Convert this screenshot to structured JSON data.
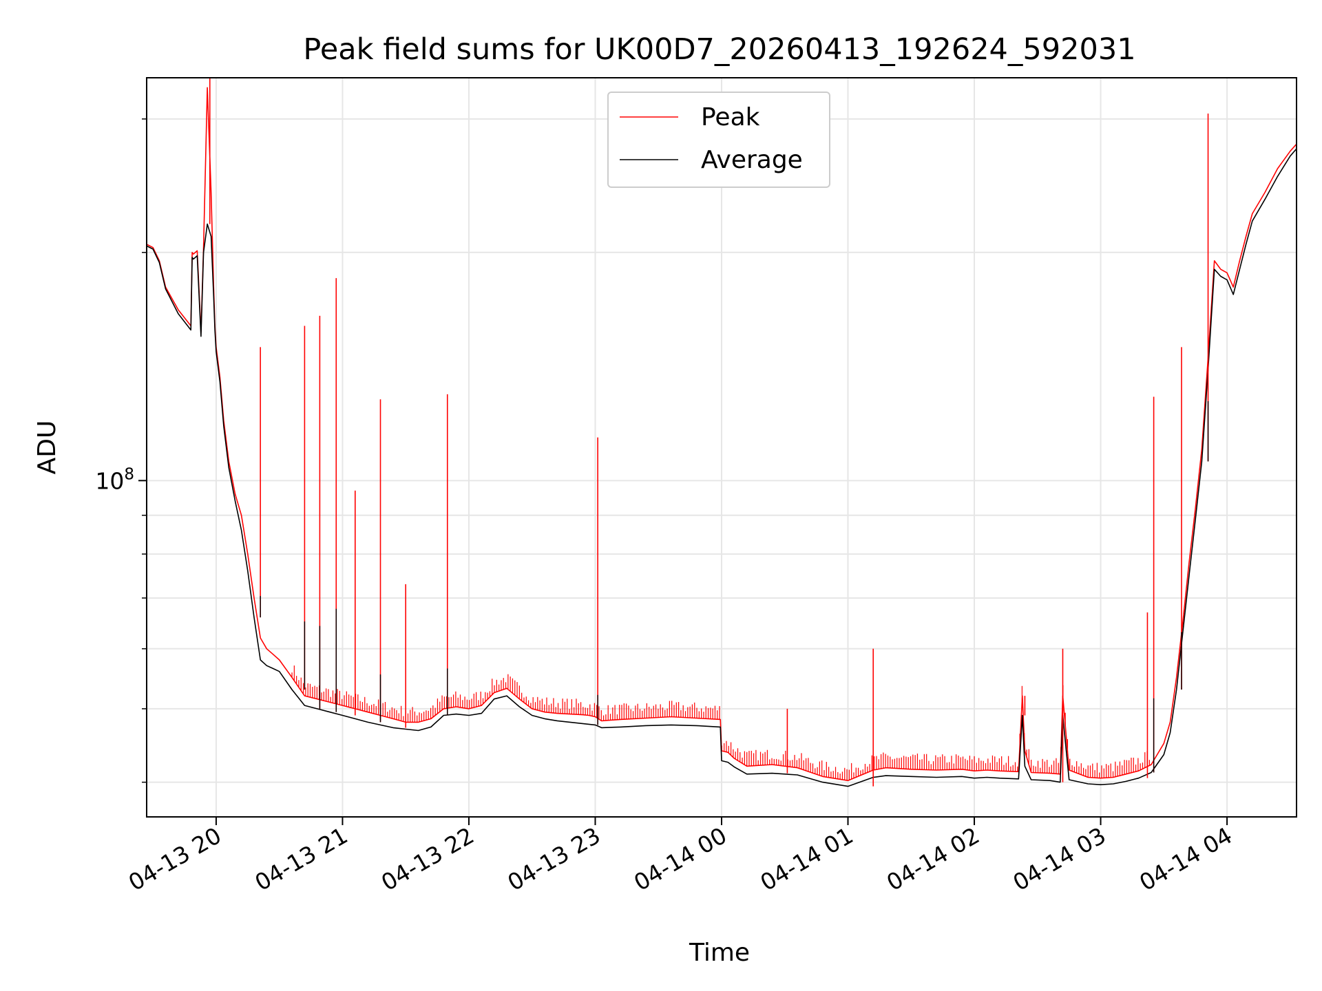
{
  "chart_data": {
    "type": "line",
    "title": "Peak field sums for UK00D7_20260413_192624_592031",
    "xlabel": "Time",
    "ylabel": "ADU",
    "yscale": "log",
    "grid": true,
    "legend_position": "top-center",
    "xlim": [
      -0.55,
      8.55
    ],
    "ylim": [
      36000000,
      340000000
    ],
    "x_units": "hours since 04-13 20:00",
    "x_ticks": [
      {
        "value": 0,
        "label": "04-13 20"
      },
      {
        "value": 1,
        "label": "04-13 21"
      },
      {
        "value": 2,
        "label": "04-13 22"
      },
      {
        "value": 3,
        "label": "04-13 23"
      },
      {
        "value": 4,
        "label": "04-14 00"
      },
      {
        "value": 5,
        "label": "04-14 01"
      },
      {
        "value": 6,
        "label": "04-14 02"
      },
      {
        "value": 7,
        "label": "04-14 03"
      },
      {
        "value": 8,
        "label": "04-14 04"
      }
    ],
    "y_major_ticks": [
      {
        "value": 100000000,
        "base": "10",
        "exponent": "8"
      }
    ],
    "y_minor_ticks": [
      40000000,
      50000000,
      60000000,
      70000000,
      80000000,
      90000000,
      200000000,
      300000000
    ],
    "series": [
      {
        "name": "Peak",
        "color": "#ff0000",
        "x": [
          -0.55,
          -0.5,
          -0.45,
          -0.4,
          -0.3,
          -0.2,
          -0.12,
          -0.19,
          -0.18,
          -0.15,
          -0.1,
          -0.07,
          -0.04,
          -0.02,
          -0.01,
          0.0,
          0.03,
          0.06,
          0.1,
          0.15,
          0.2,
          0.25,
          0.3,
          0.35,
          0.4,
          0.45,
          0.5,
          0.6,
          0.7,
          0.8,
          0.9,
          1.0,
          1.1,
          1.2,
          1.3,
          1.4,
          1.5,
          1.6,
          1.7,
          1.8,
          1.9,
          2.0,
          2.1,
          2.2,
          2.3,
          2.4,
          2.5,
          2.6,
          2.7,
          2.8,
          2.9,
          2.95,
          3.0,
          3.05,
          3.2,
          3.4,
          3.6,
          3.8,
          3.99,
          4.0,
          4.05,
          4.1,
          4.2,
          4.4,
          4.6,
          4.8,
          5.0,
          5.2,
          5.3,
          5.5,
          5.7,
          5.9,
          6.0,
          6.1,
          6.2,
          6.35,
          6.38,
          6.4,
          6.45,
          6.6,
          6.68,
          6.7,
          6.75,
          6.9,
          7.0,
          7.1,
          7.2,
          7.3,
          7.4,
          7.5,
          7.55,
          7.6,
          7.65,
          7.7,
          7.75,
          7.8,
          7.85,
          7.9,
          7.95,
          8.0,
          8.05,
          8.1,
          8.15,
          8.2,
          8.3,
          8.4,
          8.5,
          8.55
        ],
        "values": [
          205000000,
          203000000,
          195000000,
          180000000,
          168000000,
          160000000,
          157000000,
          200000000,
          199000000,
          201000000,
          203000000,
          330000000,
          240000000,
          180000000,
          160000000,
          150000000,
          137000000,
          120000000,
          106000000,
          96000000,
          90000000,
          80000000,
          70000000,
          62000000,
          60000000,
          59000000,
          58000000,
          55000000,
          52000000,
          51500000,
          51000000,
          50500000,
          50000000,
          49500000,
          49000000,
          48500000,
          48000000,
          48000000,
          48500000,
          50000000,
          50300000,
          50000000,
          50500000,
          52500000,
          53200000,
          51500000,
          50000000,
          49500000,
          49300000,
          49200000,
          49100000,
          49000000,
          48800000,
          48200000,
          48400000,
          48600000,
          48800000,
          48600000,
          48400000,
          44000000,
          43800000,
          43000000,
          42000000,
          42200000,
          41800000,
          40700000,
          40200000,
          41500000,
          41800000,
          41600000,
          41500000,
          41600000,
          41400000,
          41500000,
          41400000,
          41300000,
          52000000,
          44000000,
          41200000,
          41100000,
          41000000,
          52000000,
          41500000,
          40600000,
          40500000,
          40600000,
          41000000,
          41400000,
          42200000,
          45000000,
          48000000,
          55000000,
          65000000,
          78000000,
          92000000,
          110000000,
          145000000,
          195000000,
          190000000,
          188000000,
          180000000,
          195000000,
          210000000,
          225000000,
          240000000,
          258000000,
          272000000,
          278000000
        ]
      },
      {
        "name": "Average",
        "color": "#000000",
        "x": [
          -0.55,
          -0.5,
          -0.45,
          -0.4,
          -0.3,
          -0.2,
          -0.12,
          -0.19,
          -0.18,
          -0.15,
          -0.1,
          -0.07,
          -0.04,
          -0.02,
          -0.01,
          0.0,
          0.03,
          0.06,
          0.1,
          0.15,
          0.2,
          0.25,
          0.3,
          0.35,
          0.4,
          0.45,
          0.5,
          0.6,
          0.7,
          0.8,
          0.9,
          1.0,
          1.1,
          1.2,
          1.3,
          1.4,
          1.5,
          1.6,
          1.7,
          1.8,
          1.9,
          2.0,
          2.1,
          2.2,
          2.3,
          2.4,
          2.5,
          2.6,
          2.7,
          2.8,
          2.9,
          2.95,
          3.0,
          3.05,
          3.2,
          3.4,
          3.6,
          3.8,
          3.99,
          4.0,
          4.05,
          4.1,
          4.2,
          4.4,
          4.6,
          4.8,
          5.0,
          5.2,
          5.3,
          5.5,
          5.7,
          5.9,
          6.0,
          6.1,
          6.2,
          6.35,
          6.38,
          6.4,
          6.45,
          6.6,
          6.68,
          6.7,
          6.75,
          6.9,
          7.0,
          7.1,
          7.2,
          7.3,
          7.4,
          7.5,
          7.55,
          7.6,
          7.65,
          7.7,
          7.75,
          7.8,
          7.85,
          7.9,
          7.95,
          8.0,
          8.05,
          8.1,
          8.15,
          8.2,
          8.3,
          8.4,
          8.5,
          8.55
        ],
        "values": [
          204000000,
          202000000,
          194000000,
          179000000,
          166000000,
          158000000,
          155000000,
          197000000,
          196000000,
          198000000,
          200000000,
          218000000,
          210000000,
          175000000,
          158000000,
          148000000,
          135000000,
          118000000,
          104000000,
          94000000,
          86000000,
          76000000,
          66000000,
          58000000,
          57000000,
          56500000,
          56000000,
          53000000,
          50500000,
          50000000,
          49500000,
          49000000,
          48500000,
          48000000,
          47600000,
          47200000,
          47000000,
          46800000,
          47300000,
          49000000,
          49200000,
          49000000,
          49300000,
          51500000,
          52000000,
          50300000,
          49000000,
          48500000,
          48200000,
          48000000,
          47800000,
          47700000,
          47600000,
          47200000,
          47300000,
          47500000,
          47600000,
          47500000,
          47300000,
          42700000,
          42500000,
          41900000,
          41000000,
          41100000,
          40900000,
          40000000,
          39500000,
          40600000,
          40800000,
          40700000,
          40600000,
          40700000,
          40500000,
          40600000,
          40500000,
          40400000,
          49000000,
          42000000,
          40300000,
          40200000,
          40000000,
          49000000,
          40300000,
          39800000,
          39700000,
          39800000,
          40100000,
          40500000,
          41200000,
          43500000,
          46500000,
          53000000,
          63000000,
          75000000,
          89000000,
          106000000,
          140000000,
          190000000,
          186000000,
          184000000,
          176000000,
          190000000,
          205000000,
          220000000,
          235000000,
          252000000,
          268000000,
          274000000
        ]
      }
    ],
    "peak_spikes": [
      {
        "x": -0.05,
        "value": 340000000
      },
      {
        "x": 0.35,
        "value": 150000000
      },
      {
        "x": 0.7,
        "value": 160000000
      },
      {
        "x": 0.82,
        "value": 165000000
      },
      {
        "x": 0.95,
        "value": 185000000
      },
      {
        "x": 1.1,
        "value": 97000000
      },
      {
        "x": 1.3,
        "value": 128000000
      },
      {
        "x": 1.5,
        "value": 73000000
      },
      {
        "x": 1.83,
        "value": 130000000
      },
      {
        "x": 3.02,
        "value": 114000000
      },
      {
        "x": 4.52,
        "value": 50000000
      },
      {
        "x": 5.2,
        "value": 60000000
      },
      {
        "x": 6.4,
        "value": 52000000
      },
      {
        "x": 6.7,
        "value": 60000000
      },
      {
        "x": 7.37,
        "value": 67000000
      },
      {
        "x": 7.42,
        "value": 129000000
      },
      {
        "x": 7.64,
        "value": 150000000
      },
      {
        "x": 7.85,
        "value": 305000000
      }
    ]
  }
}
